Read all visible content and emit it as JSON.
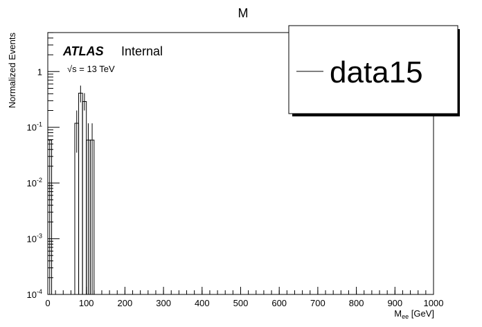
{
  "chart_data": {
    "type": "bar",
    "title": "M",
    "xlabel_main": "M",
    "xlabel_sub": "ee",
    "xlabel_unit": " [GeV]",
    "ylabel": "Normalized Events",
    "xlim": [
      0,
      1000
    ],
    "ylim_log10": [
      -4,
      0.7
    ],
    "yscale": "log",
    "x_ticks": [
      "0",
      "100",
      "200",
      "300",
      "400",
      "500",
      "600",
      "700",
      "800",
      "900",
      "1000"
    ],
    "y_ticks": [
      {
        "base": "10",
        "exp": "-4"
      },
      {
        "base": "10",
        "exp": "-3"
      },
      {
        "base": "10",
        "exp": "-2"
      },
      {
        "base": "10",
        "exp": "-1"
      },
      {
        "base": "1",
        "exp": ""
      }
    ],
    "bin_width": 10,
    "bins": [
      {
        "x_low": 0,
        "value": 0.059,
        "err_low": 0.0,
        "err_high": 0.059
      },
      {
        "x_low": 70,
        "value": 0.118,
        "err_low": 0.035,
        "err_high": 0.2
      },
      {
        "x_low": 80,
        "value": 0.41,
        "err_low": 0.28,
        "err_high": 0.56
      },
      {
        "x_low": 90,
        "value": 0.29,
        "err_low": 0.2,
        "err_high": 0.41
      },
      {
        "x_low": 100,
        "value": 0.059,
        "err_low": 0.0,
        "err_high": 0.118
      },
      {
        "x_low": 110,
        "value": 0.059,
        "err_low": 0.0,
        "err_high": 0.118
      }
    ],
    "legend": {
      "entry": "data15",
      "placement": "top-right"
    },
    "annotations": {
      "experiment": "ATLAS",
      "status": "Internal",
      "energy": "√s = 13 TeV"
    }
  }
}
